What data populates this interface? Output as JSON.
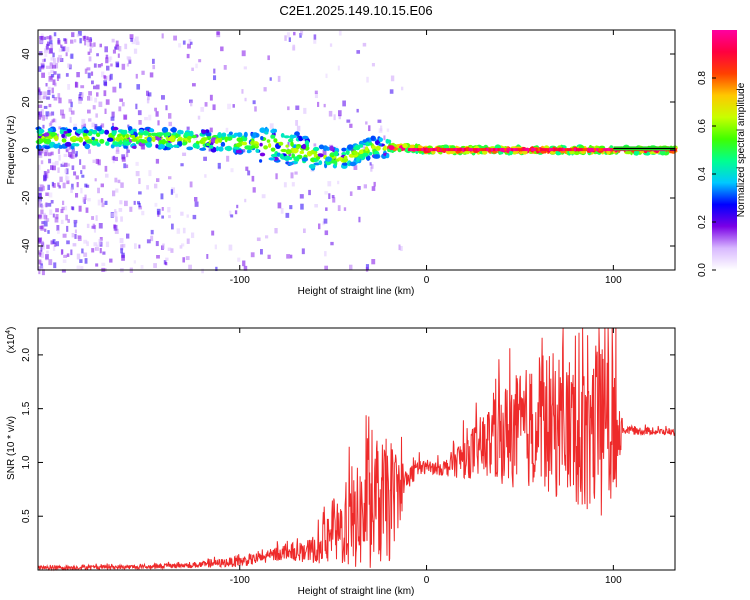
{
  "title": "C2E1.2025.149.10.15.E06",
  "chart_data": [
    {
      "type": "heatmap",
      "name": "spectrogram",
      "xlabel": "Height of straight line (km)",
      "ylabel": "Frequency (Hz)",
      "xlim": [
        -208,
        133
      ],
      "ylim": [
        -50,
        50
      ],
      "xticks": [
        -100,
        0,
        100
      ],
      "yticks": [
        -40,
        -20,
        0,
        20,
        40
      ],
      "xtick_labels": [
        "-100",
        "0",
        "100"
      ],
      "ytick_labels": [
        "-40",
        "-20",
        "0",
        "20",
        "40"
      ],
      "colorbar": {
        "label": "Normalized spectral amplitude",
        "range": [
          0,
          1
        ],
        "ticks": [
          0.0,
          0.2,
          0.4,
          0.6,
          0.8
        ],
        "tick_labels": [
          "0.0",
          "0.2",
          "0.4",
          "0.6",
          "0.8"
        ],
        "colors": [
          "#ffffff",
          "#d8b8ff",
          "#7a00e6",
          "#0000ff",
          "#00c8ff",
          "#00ff90",
          "#40ff00",
          "#c8ff00",
          "#ffc800",
          "#ff4000",
          "#ff0040",
          "#ff00a0"
        ]
      },
      "ridge": {
        "x": [
          -208,
          -180,
          -150,
          -120,
          -100,
          -80,
          -60,
          -45,
          -30,
          -20,
          -10,
          0,
          20,
          50,
          80,
          100,
          133
        ],
        "y": [
          5,
          5,
          5,
          4,
          3,
          2,
          -2,
          -4,
          1,
          1,
          1,
          0,
          0,
          0,
          0,
          0,
          0
        ]
      }
    },
    {
      "type": "line",
      "name": "snr",
      "xlabel": "Height of straight line (km)",
      "ylabel": "SNR (10 * v/v)",
      "scale_label": "(x10",
      "scale_exp": "4",
      "xlim": [
        -208,
        133
      ],
      "ylim": [
        0,
        2.25
      ],
      "xticks": [
        -100,
        0,
        100
      ],
      "yticks": [
        0.5,
        1.0,
        1.5,
        2.0
      ],
      "xtick_labels": [
        "-100",
        "0",
        "100"
      ],
      "ytick_labels": [
        "0.5",
        "1.0",
        "1.5",
        "2.0"
      ],
      "color": "#ee2a2a",
      "envelope": {
        "x": [
          -208,
          -150,
          -120,
          -100,
          -85,
          -75,
          -65,
          -50,
          -40,
          -30,
          -20,
          -10,
          -5,
          0,
          10,
          20,
          30,
          40,
          50,
          60,
          70,
          80,
          90,
          100,
          105,
          133
        ],
        "mean": [
          0.02,
          0.03,
          0.05,
          0.08,
          0.12,
          0.18,
          0.15,
          0.3,
          0.45,
          0.55,
          0.65,
          0.85,
          0.95,
          0.95,
          0.95,
          1.05,
          1.15,
          1.25,
          1.3,
          1.35,
          1.35,
          1.3,
          1.3,
          1.3,
          1.3,
          1.28
        ],
        "spread": [
          0.02,
          0.02,
          0.03,
          0.05,
          0.06,
          0.08,
          0.08,
          0.25,
          0.45,
          0.55,
          0.6,
          0.1,
          0.1,
          0.05,
          0.08,
          0.2,
          0.3,
          0.45,
          0.55,
          0.6,
          0.7,
          0.7,
          0.8,
          0.8,
          0.04,
          0.03
        ]
      }
    }
  ]
}
